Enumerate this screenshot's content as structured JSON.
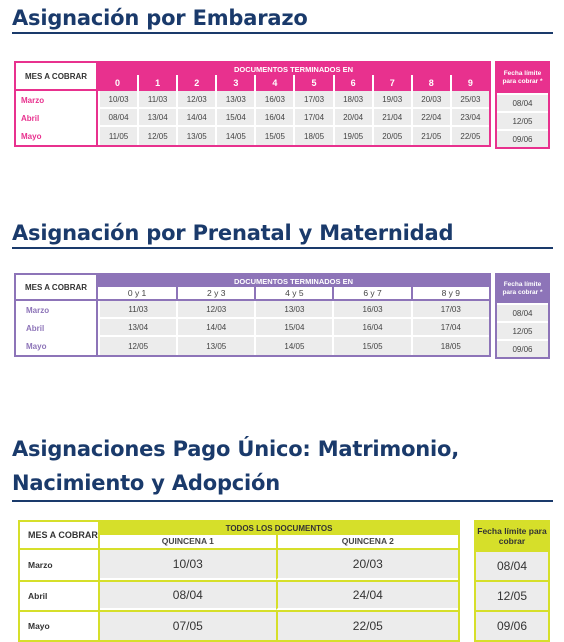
{
  "embarazo": {
    "title": "Asignación por Embarazo",
    "mes_header": "MES A COBRAR",
    "doc_header": "DOCUMENTOS TERMINADOS EN",
    "digits": [
      "0",
      "1",
      "2",
      "3",
      "4",
      "5",
      "6",
      "7",
      "8",
      "9"
    ],
    "rows": [
      {
        "month": "Marzo",
        "values": [
          "10/03",
          "11/03",
          "12/03",
          "13/03",
          "16/03",
          "17/03",
          "18/03",
          "19/03",
          "20/03",
          "25/03"
        ]
      },
      {
        "month": "Abril",
        "values": [
          "08/04",
          "13/04",
          "14/04",
          "15/04",
          "16/04",
          "17/04",
          "20/04",
          "21/04",
          "22/04",
          "23/04"
        ]
      },
      {
        "month": "Mayo",
        "values": [
          "11/05",
          "12/05",
          "13/05",
          "14/05",
          "15/05",
          "18/05",
          "19/05",
          "20/05",
          "21/05",
          "22/05"
        ]
      }
    ],
    "deadline_header": "Fecha límite para cobrar *",
    "deadlines": [
      "08/04",
      "12/05",
      "09/06"
    ],
    "color": "#e8318e"
  },
  "prenatal": {
    "title": "Asignación por Prenatal y Maternidad",
    "mes_header": "MES A COBRAR",
    "doc_header": "DOCUMENTOS TERMINADOS EN",
    "digits": [
      "0 y 1",
      "2 y 3",
      "4 y 5",
      "6 y 7",
      "8 y 9"
    ],
    "rows": [
      {
        "month": "Marzo",
        "values": [
          "11/03",
          "12/03",
          "13/03",
          "16/03",
          "17/03"
        ]
      },
      {
        "month": "Abril",
        "values": [
          "13/04",
          "14/04",
          "15/04",
          "16/04",
          "17/04"
        ]
      },
      {
        "month": "Mayo",
        "values": [
          "12/05",
          "13/05",
          "14/05",
          "15/05",
          "18/05"
        ]
      }
    ],
    "deadline_header": "Fecha límite para cobrar *",
    "deadlines": [
      "08/04",
      "12/05",
      "09/06"
    ],
    "color": "#8d74b8"
  },
  "pago_unico": {
    "title_line1": "Asignaciones Pago Único: Matrimonio,",
    "title_line2": "Nacimiento y Adopción",
    "mes_header": "MES A COBRAR",
    "doc_header": "TODOS LOS DOCUMENTOS",
    "quincenas": [
      "QUINCENA 1",
      "QUINCENA 2"
    ],
    "rows": [
      {
        "month": "Marzo",
        "values": [
          "10/03",
          "20/03"
        ]
      },
      {
        "month": "Abril",
        "values": [
          "08/04",
          "24/04"
        ]
      },
      {
        "month": "Mayo",
        "values": [
          "07/05",
          "22/05"
        ]
      }
    ],
    "deadline_header": "Fecha límite para cobrar",
    "deadlines": [
      "08/04",
      "12/05",
      "09/06"
    ],
    "color": "#d6df2a"
  }
}
